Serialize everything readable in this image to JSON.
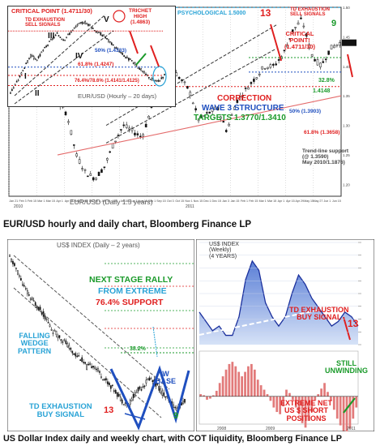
{
  "captions": {
    "top": "EUR/USD hourly and daily chart, Bloomberg Finance LP",
    "bottom": "US Dollar Index daily and weekly chart, with COT liquidity, Bloomberg Finance LP"
  },
  "chart_data": [
    {
      "id": "eurusd-daily",
      "type": "line",
      "chart_style": "candlestick",
      "title": "EUR/USD (Daily 1.5 years)",
      "x_ticks": [
        "Jan 21",
        "Feb 3",
        "Feb 15",
        "Mar 1",
        "Mar 15",
        "Apr 1",
        "Apr 15",
        "May 3",
        "May 15",
        "Jun 1",
        "Jun 15",
        "Jul 1",
        "Jul 15",
        "Aug 2",
        "Aug 15",
        "Sep 1",
        "Sep 15",
        "Oct 3",
        "Oct 15",
        "Nov 1",
        "Nov 15",
        "Dec 1",
        "Dec 15",
        "Jan 3",
        "Jan 15",
        "Feb 1",
        "Feb 15",
        "Mar 1",
        "Mar 15",
        "Apr 1",
        "Apr 15",
        "Apr 29",
        "May 15",
        "May 27",
        "Jun 1",
        "Jun 15"
      ],
      "x_axis_years": [
        "2010",
        "2011"
      ],
      "series": [
        {
          "values": [
            1.41,
            1.37,
            1.34,
            1.36,
            1.35,
            1.34,
            1.32,
            1.25,
            1.22,
            1.21,
            1.23,
            1.27,
            1.3,
            1.29,
            1.28,
            1.33,
            1.37,
            1.4,
            1.38,
            1.36,
            1.31,
            1.32,
            1.33,
            1.29,
            1.34,
            1.36,
            1.38,
            1.4,
            1.4,
            1.42,
            1.46,
            1.48,
            1.42,
            1.4,
            1.43,
            1.44
          ]
        }
      ],
      "annotations": [
        {
          "text": "PSYCHOLOGICAL 1.5000",
          "color": "#29a3d6"
        },
        {
          "text": "13",
          "color": "#e02020"
        },
        {
          "text": "TD EXHAUSTION\nSELL SIGNALS",
          "color": "#e02020"
        },
        {
          "text": "9",
          "color": "#1a9a2a"
        },
        {
          "text": "CRITICAL\nPOINT!\n(1.4711/30)",
          "color": "#e02020"
        },
        {
          "text": "32.8%",
          "color": "#1a9a2a"
        },
        {
          "text": "1.4148",
          "color": "#1a9a2a"
        },
        {
          "text": "CORRECTION",
          "color": "#e02020"
        },
        {
          "text": "WAVE 3 STRUCTURE",
          "color": "#1f4fbf"
        },
        {
          "text": "TARGETS 1.3770/1.3410",
          "color": "#1a9a2a"
        },
        {
          "text": "50% (1.3903)",
          "color": "#1f4fbf"
        },
        {
          "text": "61.8% (1.3658)",
          "color": "#e02020"
        },
        {
          "text": "Trend-line support\n(@ 1.3590)\nMay 2010/1.1876)",
          "color": "#444444"
        }
      ]
    },
    {
      "id": "eurusd-hourly",
      "type": "line",
      "chart_style": "candlestick",
      "title": "EUR/USD (Hourly – 20 days)",
      "series": [
        {
          "values": [
            1.407,
            1.418,
            1.432,
            1.445,
            1.441,
            1.452,
            1.461,
            1.468,
            1.462,
            1.47,
            1.477,
            1.481,
            1.476,
            1.47,
            1.466,
            1.458,
            1.452,
            1.445,
            1.44,
            1.434,
            1.427,
            1.421,
            1.418,
            1.425
          ]
        }
      ],
      "annotations": [
        {
          "text": "CRITICAL POINT (1.4711/30)",
          "color": "#e02020"
        },
        {
          "text": "TD EXHAUSTION\nSELL SIGNALS",
          "color": "#e02020"
        },
        {
          "text": "TRICHET\nHIGH\n(1.4863)",
          "color": "#e02020"
        },
        {
          "text": "III",
          "color": "#111111"
        },
        {
          "text": "IV",
          "color": "#111111"
        },
        {
          "text": "V",
          "color": "#111111"
        },
        {
          "text": "I",
          "color": "#111111"
        },
        {
          "text": "II",
          "color": "#111111"
        },
        {
          "text": "50% (1.4333)",
          "color": "#1f4fbf"
        },
        {
          "text": "61.8% (1.4247)",
          "color": "#e02020"
        },
        {
          "text": "76.4%/78.6% (1.4141/1.4125)",
          "color": "#e02020"
        }
      ]
    },
    {
      "id": "usd-index-daily",
      "type": "line",
      "chart_style": "candlestick",
      "title": "US$ INDEX (Daily – 2 years)",
      "series": [
        {
          "values": [
            88.5,
            87.4,
            85.9,
            84.8,
            84.1,
            83.2,
            82.0,
            81.4,
            80.8,
            79.9,
            79.5,
            78.6,
            78.8,
            77.9,
            77.2,
            76.5,
            75.6,
            75.2,
            76.3,
            76.9,
            77.6,
            77.0,
            76.1,
            75.3,
            74.8,
            75.6
          ]
        }
      ],
      "annotations": [
        {
          "text": "NEXT STAGE RALLY",
          "color": "#1a9a2a"
        },
        {
          "text": "FROM EXTREME",
          "color": "#29a3d6"
        },
        {
          "text": "76.4% SUPPORT",
          "color": "#e02020"
        },
        {
          "text": "38.2%",
          "color": "#1a9a2a"
        },
        {
          "text": "FALLING\nWEDGE\nPATTERN",
          "color": "#29a3d6"
        },
        {
          "text": "W\nBASE",
          "color": "#1f4fbf"
        },
        {
          "text": "TD EXHAUSTION\nBUY SIGNAL",
          "color": "#29a3d6"
        },
        {
          "text": "13",
          "color": "#e02020"
        },
        {
          "text": "9",
          "color": "#1a9a2a"
        }
      ]
    },
    {
      "id": "usd-index-weekly",
      "type": "area",
      "title": "US$ INDEX\n(Weekly)\n(4 YEARS)",
      "x_ticks": [
        "2008",
        "2009",
        "2011"
      ],
      "series": [
        {
          "values": [
            77,
            75,
            73,
            74,
            72,
            72,
            76,
            84,
            88,
            86,
            79,
            76,
            74,
            76,
            81,
            85,
            83,
            80,
            78,
            76,
            74,
            75,
            77,
            76,
            74
          ]
        }
      ],
      "annotations": [
        {
          "text": "TD EXHAUSTION\nBUY SIGNAL",
          "color": "#e02020"
        },
        {
          "text": "13",
          "color": "#e02020"
        }
      ]
    },
    {
      "id": "cot-liquidity",
      "type": "bar",
      "series": [
        {
          "values": [
            2,
            1,
            -3,
            -2,
            1,
            5,
            12,
            18,
            24,
            29,
            31,
            27,
            22,
            18,
            22,
            27,
            29,
            24,
            15,
            10,
            6,
            2,
            -4,
            -10,
            -14,
            -16,
            -9,
            6,
            3,
            -3,
            -10,
            -16,
            -24,
            -28,
            -22,
            -14,
            -4,
            2,
            7,
            12,
            4,
            -4,
            -12,
            -20,
            -26,
            -31,
            -34,
            -29,
            -20,
            -10
          ]
        }
      ],
      "annotations": [
        {
          "text": "STILL\nUNWINDING",
          "color": "#1a9a2a"
        },
        {
          "text": "EXTREME NET\nUS $ SHORT\nPOSITIONS",
          "color": "#e02020"
        }
      ]
    }
  ]
}
